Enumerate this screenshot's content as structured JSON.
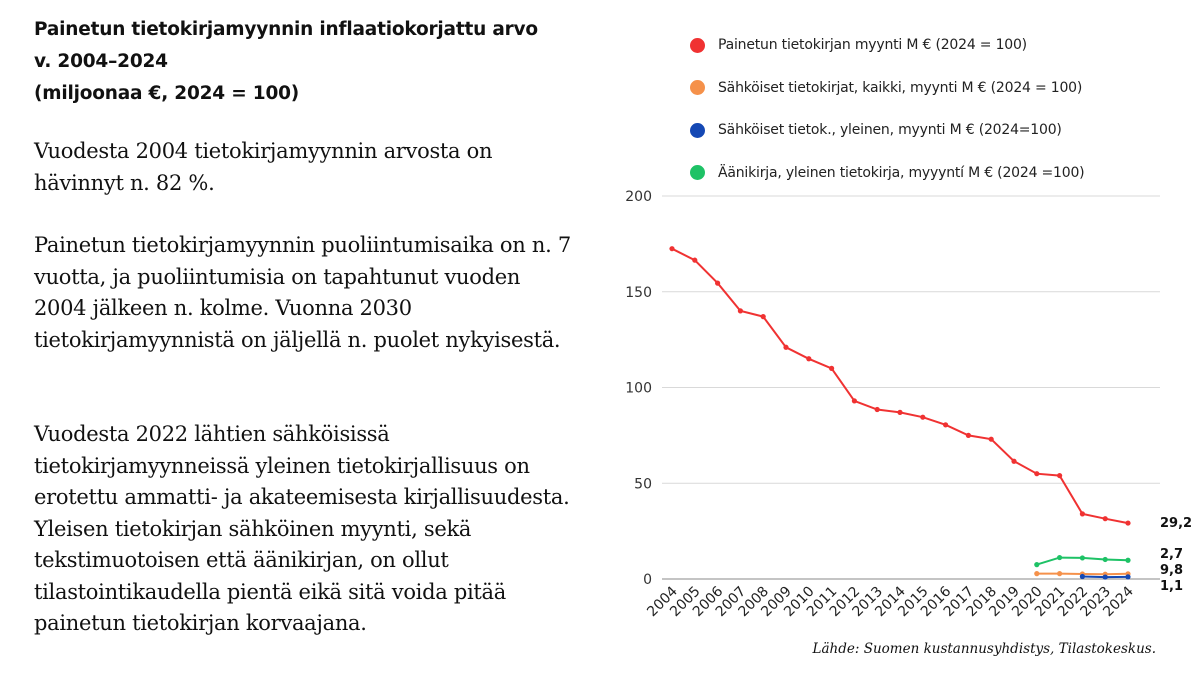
{
  "title_lines": [
    "Painetun tietokirjamyynnin inflaatiokorjattu arvo",
    "v. 2004–2024",
    "(miljoonaa €, 2024 = 100)"
  ],
  "paragraphs": [
    "Vuodesta 2004 tietokirjamyynnin arvosta on hävinnyt n. 82 %.",
    "Painetun tietokirjamyynnin puoliintumisaika on n. 7 vuotta, ja puoliintumisia on tapahtunut vuoden 2004 jälkeen n. kolme. Vuonna 2030 tietokirjamyynnistä on jäljellä n. puolet nykyisestä.",
    "Vuodesta 2022 lähtien sähköisissä tietokirjamyynneissä yleinen tietokirjallisuus on erotettu ammatti- ja akateemisesta kirjallisuudesta. Yleisen tietokirjan sähköinen myynti, sekä tekstimuotoisen että äänikirjan, on ollut tilastointikaudella pientä eikä sitä voida pitää painetun tietokirjan korvaajana."
  ],
  "source": "Lähde: Suomen kustannusyhdistys, Tilastokeskus.",
  "chart_data": {
    "type": "line",
    "x": [
      "2004",
      "2005",
      "2006",
      "2007",
      "2008",
      "2009",
      "2010",
      "2011",
      "2012",
      "2013",
      "2014",
      "2015",
      "2016",
      "2017",
      "2018",
      "2019",
      "2020",
      "2021",
      "2022",
      "2023",
      "2024"
    ],
    "ylim": [
      0,
      200
    ],
    "yticks": [
      "0",
      "50",
      "100",
      "150",
      "200"
    ],
    "grid": true,
    "legend_position": "top",
    "series": [
      {
        "name": "Painetun tietokirjan myynti M € (2024 = 100)",
        "color": "#f03232",
        "values": [
          172.5,
          166.5,
          154.5,
          140,
          137,
          121,
          115,
          110,
          93,
          88.5,
          87,
          84.5,
          80.5,
          75,
          73,
          61.5,
          55,
          54,
          34,
          31.5,
          29.2
        ],
        "end_label": "29,2"
      },
      {
        "name": "Sähköiset tietokirjat, kaikki, myynti M € (2024 = 100)",
        "color": "#f5914a",
        "values": [
          null,
          null,
          null,
          null,
          null,
          null,
          null,
          null,
          null,
          null,
          null,
          null,
          null,
          null,
          null,
          null,
          2.8,
          2.8,
          2.6,
          2.5,
          2.7
        ],
        "end_label": "2,7"
      },
      {
        "name": "Sähköiset tietok., yleinen, myynti M € (2024=100)",
        "color": "#1448b4",
        "values": [
          null,
          null,
          null,
          null,
          null,
          null,
          null,
          null,
          null,
          null,
          null,
          null,
          null,
          null,
          null,
          null,
          null,
          null,
          1.3,
          1.0,
          1.1
        ],
        "end_label": "1,1"
      },
      {
        "name": "Äänikirja, yleinen tietokirja, myyyntí M € (2024 =100)",
        "color": "#1ec266",
        "values": [
          null,
          null,
          null,
          null,
          null,
          null,
          null,
          null,
          null,
          null,
          null,
          null,
          null,
          null,
          null,
          null,
          7.5,
          11.2,
          11.0,
          10.2,
          9.8
        ],
        "end_label": "9,8"
      }
    ]
  }
}
